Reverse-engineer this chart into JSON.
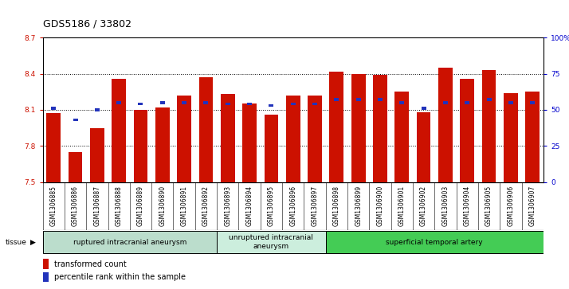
{
  "title": "GDS5186 / 33802",
  "samples": [
    "GSM1306885",
    "GSM1306886",
    "GSM1306887",
    "GSM1306888",
    "GSM1306889",
    "GSM1306890",
    "GSM1306891",
    "GSM1306892",
    "GSM1306893",
    "GSM1306894",
    "GSM1306895",
    "GSM1306896",
    "GSM1306897",
    "GSM1306898",
    "GSM1306899",
    "GSM1306900",
    "GSM1306901",
    "GSM1306902",
    "GSM1306903",
    "GSM1306904",
    "GSM1306905",
    "GSM1306906",
    "GSM1306907"
  ],
  "bar_values": [
    8.07,
    7.75,
    7.95,
    8.36,
    8.1,
    8.12,
    8.22,
    8.37,
    8.23,
    8.15,
    8.06,
    8.22,
    8.22,
    8.42,
    8.4,
    8.39,
    8.25,
    8.08,
    8.45,
    8.36,
    8.43,
    8.24,
    8.25
  ],
  "percentile_values": [
    51,
    43,
    50,
    55,
    54,
    55,
    55,
    55,
    54,
    54,
    53,
    54,
    54,
    57,
    57,
    57,
    55,
    51,
    55,
    55,
    57,
    55,
    55
  ],
  "ylim_left": [
    7.5,
    8.7
  ],
  "ylim_right": [
    0,
    100
  ],
  "yticks_left": [
    7.5,
    7.8,
    8.1,
    8.4,
    8.7
  ],
  "yticks_right": [
    0,
    25,
    50,
    75,
    100
  ],
  "ytick_labels_right": [
    "0",
    "25",
    "50",
    "75",
    "100%"
  ],
  "bar_color": "#cc1100",
  "percentile_color": "#2233bb",
  "grid_color": "#000000",
  "bg_color": "#ffffff",
  "tissue_groups": [
    {
      "label": "ruptured intracranial aneurysm",
      "start": 0,
      "end": 8,
      "color": "#bbddcc"
    },
    {
      "label": "unruptured intracranial\naneurysm",
      "start": 8,
      "end": 13,
      "color": "#cceedd"
    },
    {
      "label": "superficial temporal artery",
      "start": 13,
      "end": 23,
      "color": "#44cc55"
    }
  ],
  "legend_bar_label": "transformed count",
  "legend_pct_label": "percentile rank within the sample",
  "xlabel_tissue": "tissue",
  "tick_fontsize": 6.5,
  "title_fontsize": 9
}
